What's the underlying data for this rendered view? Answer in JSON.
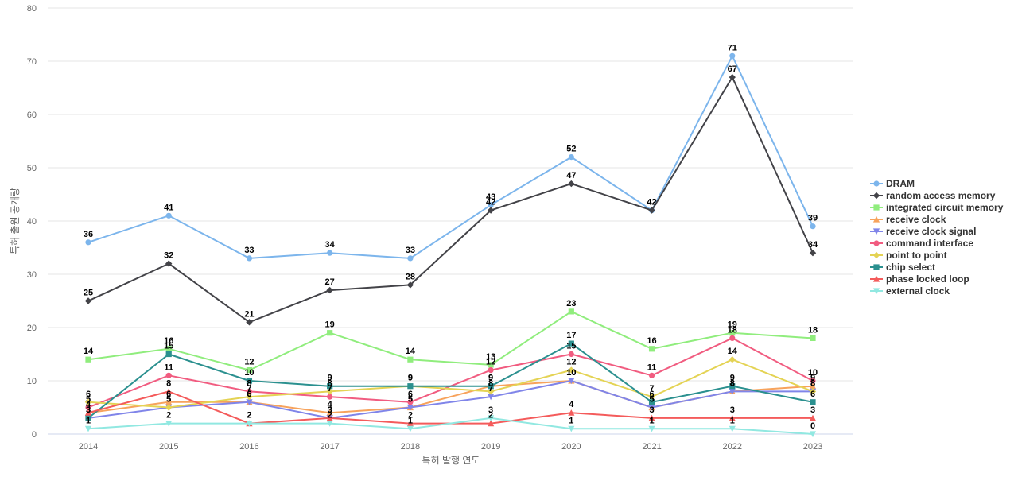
{
  "chart_data": {
    "type": "line",
    "xlabel": "특허 발행 연도",
    "ylabel": "특허 출원 공개량",
    "ylim": [
      0,
      80
    ],
    "yticks": [
      0,
      10,
      20,
      30,
      40,
      50,
      60,
      70,
      80
    ],
    "grid": true,
    "legend_position": "right",
    "categories": [
      "2014",
      "2015",
      "2016",
      "2017",
      "2018",
      "2019",
      "2020",
      "2021",
      "2022",
      "2023"
    ],
    "series": [
      {
        "name": "DRAM",
        "color": "#7cb5ec",
        "marker": "circle",
        "values": [
          36,
          41,
          33,
          34,
          33,
          43,
          52,
          42,
          71,
          39
        ]
      },
      {
        "name": "random access memory",
        "color": "#434348",
        "marker": "diamond",
        "values": [
          25,
          32,
          21,
          27,
          28,
          42,
          47,
          42,
          67,
          34
        ]
      },
      {
        "name": "integrated circuit memory",
        "color": "#90ed7d",
        "marker": "square",
        "values": [
          14,
          16,
          12,
          19,
          14,
          13,
          23,
          16,
          19,
          18
        ]
      },
      {
        "name": "receive clock",
        "color": "#f7a35c",
        "marker": "triangle",
        "values": [
          4,
          6,
          6,
          4,
          5,
          9,
          10,
          5,
          8,
          9
        ]
      },
      {
        "name": "receive clock signal",
        "color": "#8085e9",
        "marker": "triangle-down",
        "values": [
          3,
          5,
          6,
          3,
          5,
          7,
          10,
          5,
          8,
          8
        ]
      },
      {
        "name": "command interface",
        "color": "#f15c80",
        "marker": "circle",
        "values": [
          5,
          11,
          8,
          7,
          6,
          12,
          15,
          11,
          18,
          10
        ]
      },
      {
        "name": "point to point",
        "color": "#e4d354",
        "marker": "diamond",
        "values": [
          6,
          5,
          7,
          8,
          9,
          8,
          12,
          7,
          14,
          8
        ]
      },
      {
        "name": "chip select",
        "color": "#2b908f",
        "marker": "square",
        "values": [
          3,
          15,
          10,
          9,
          9,
          9,
          17,
          6,
          9,
          6
        ]
      },
      {
        "name": "phase locked loop",
        "color": "#f45b5b",
        "marker": "triangle",
        "values": [
          4,
          8,
          2,
          3,
          2,
          2,
          4,
          3,
          3,
          3
        ]
      },
      {
        "name": "external clock",
        "color": "#91e8e1",
        "marker": "triangle-down",
        "values": [
          1,
          2,
          2,
          2,
          1,
          3,
          1,
          1,
          1,
          0
        ]
      }
    ]
  }
}
